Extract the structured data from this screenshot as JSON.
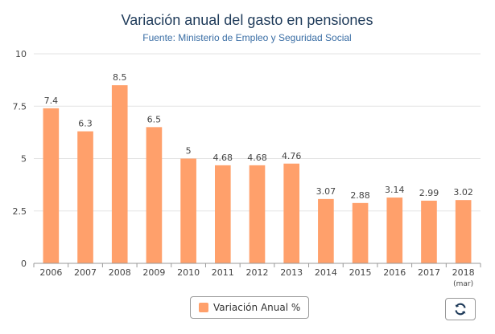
{
  "chart_data": {
    "type": "bar",
    "title": "Variación anual del gasto en pensiones",
    "subtitle": "Fuente: Ministerio de Empleo y Seguridad Social",
    "categories": [
      "2006",
      "2007",
      "2008",
      "2009",
      "2010",
      "2011",
      "2012",
      "2013",
      "2014",
      "2015",
      "2016",
      "2017",
      "2018"
    ],
    "category_sublabels": [
      "",
      "",
      "",
      "",
      "",
      "",
      "",
      "",
      "",
      "",
      "",
      "",
      "(mar)"
    ],
    "series": [
      {
        "name": "Variación Anual %",
        "values": [
          7.4,
          6.3,
          8.5,
          6.5,
          5,
          4.68,
          4.68,
          4.76,
          3.07,
          2.88,
          3.14,
          2.99,
          3.02
        ],
        "labels": [
          "7.4",
          "6.3",
          "8.5",
          "6.5",
          "5",
          "4.68",
          "4.68",
          "4.76",
          "3.07",
          "2.88",
          "3.14",
          "2.99",
          "3.02"
        ]
      }
    ],
    "yticks": [
      "0",
      "2.5",
      "5",
      "7.5",
      "10"
    ],
    "ylim": [
      0,
      10
    ],
    "grid": true,
    "legend_position": "bottom"
  },
  "colors": {
    "bar": "#ffa06b",
    "title": "#1f3b5a",
    "subtitle": "#3a6ea5"
  },
  "legend": {
    "label": "Variación Anual %"
  },
  "toolbar": {
    "refresh_icon": "refresh-icon"
  }
}
